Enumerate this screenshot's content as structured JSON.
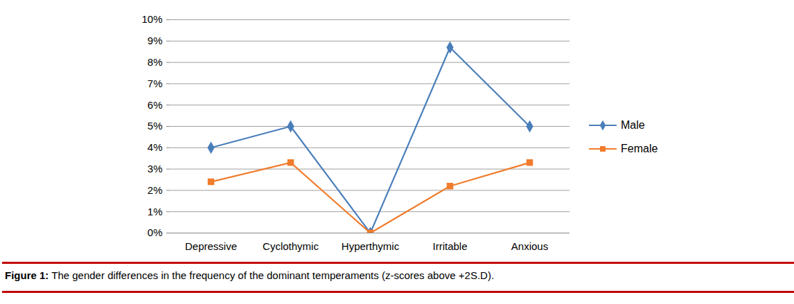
{
  "chart_data": {
    "type": "line",
    "title": "Figure 1: The gender differences in the frequency of the dominant temperaments (z-scores above +2S.D).",
    "categories": [
      "Depressive",
      "Cyclothymic",
      "Hyperthymic",
      "Irritable",
      "Anxious"
    ],
    "series": [
      {
        "name": "Male",
        "color": "#4a7ebb",
        "marker": "diamond",
        "values": [
          4,
          5,
          0,
          8.7,
          5
        ]
      },
      {
        "name": "Female",
        "color": "#f07c2c",
        "marker": "square",
        "values": [
          2.4,
          3.3,
          0,
          2.2,
          3.3
        ]
      }
    ],
    "ylim": [
      0,
      10
    ],
    "yticks": [
      {
        "value": 0,
        "label": "0%"
      },
      {
        "value": 1,
        "label": "1%"
      },
      {
        "value": 2,
        "label": "2%"
      },
      {
        "value": 3,
        "label": "3%"
      },
      {
        "value": 4,
        "label": "4%"
      },
      {
        "value": 5,
        "label": "5%"
      },
      {
        "value": 6,
        "label": "6%"
      },
      {
        "value": 7,
        "label": "7%"
      },
      {
        "value": 8,
        "label": "8%"
      },
      {
        "value": 9,
        "label": "9%"
      },
      {
        "value": 10,
        "label": "10%"
      }
    ],
    "grid": true,
    "legend": "right"
  }
}
